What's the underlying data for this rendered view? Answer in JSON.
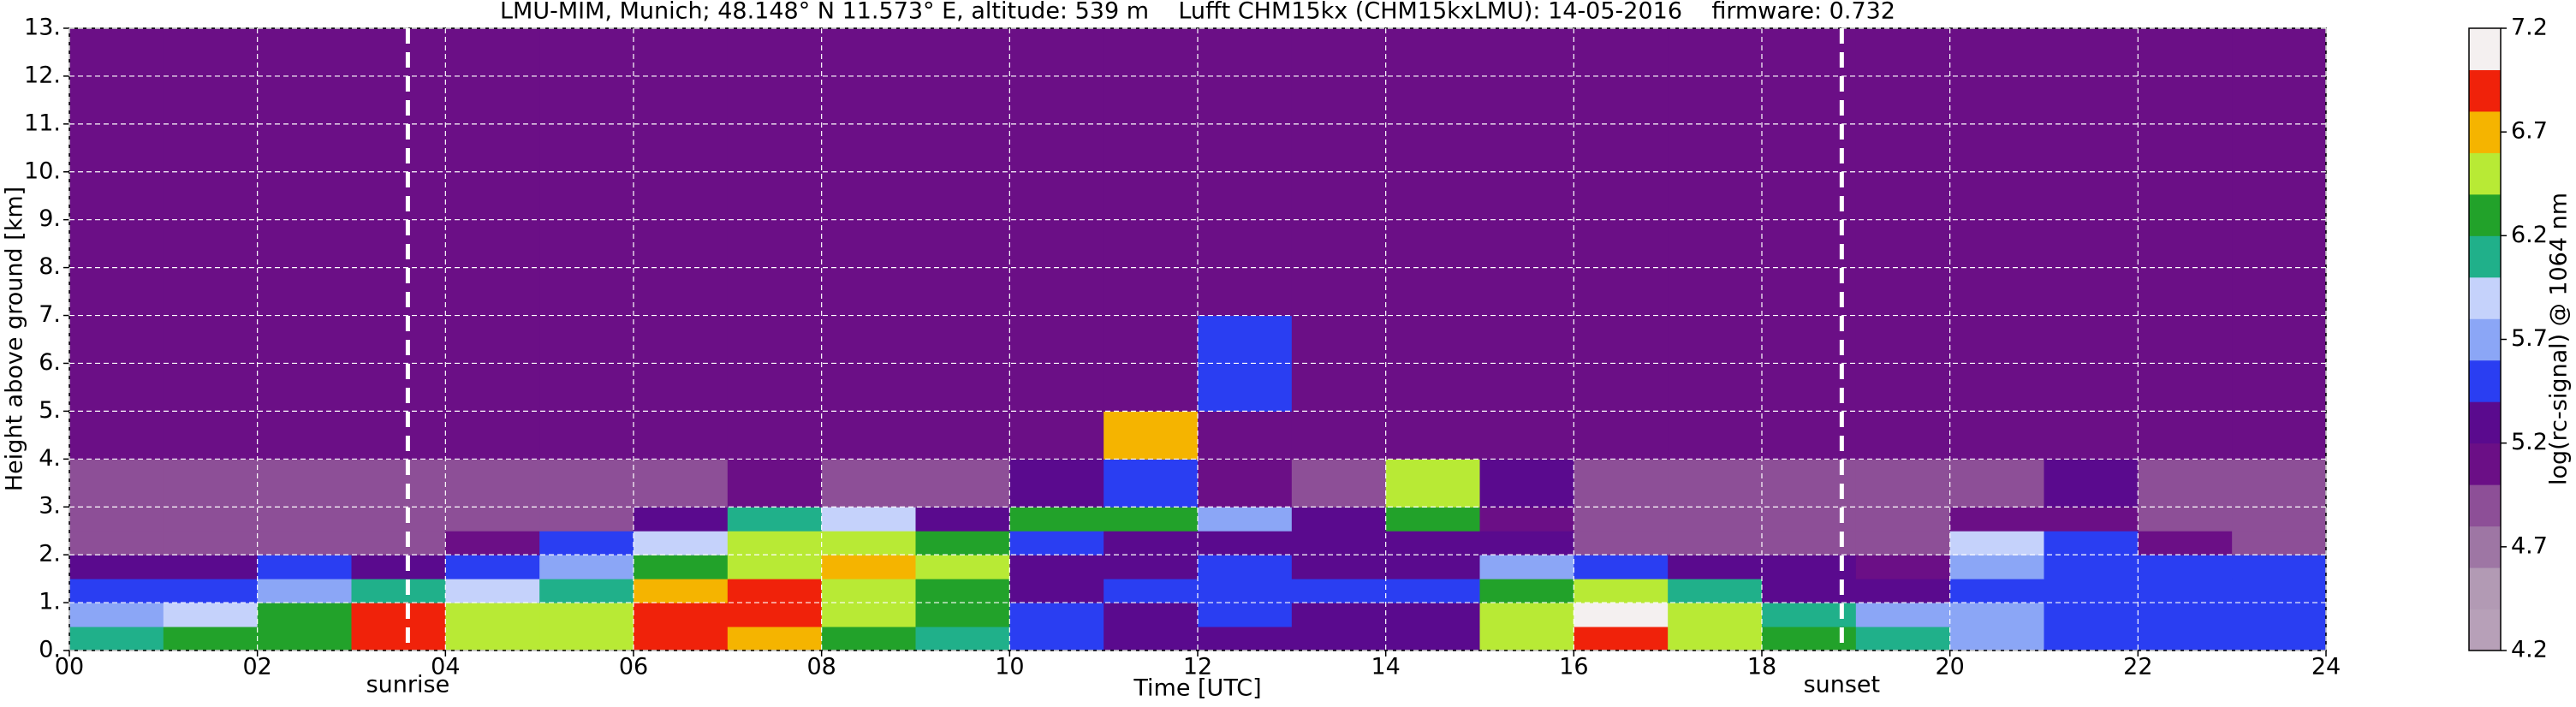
{
  "chart_data": {
    "type": "heatmap",
    "title": "LMU-MIM, Munich; 48.148° N 11.573° E, altitude: 539 m    Lufft CHM15kx (CHM15kxLMU): 14-05-2016    firmware: 0.732",
    "xlabel": "Time [UTC]",
    "ylabel": "Height above ground [km]",
    "colorbar_label": "log(rc-signal) @ 1064 nm",
    "xbins": [
      0,
      1,
      2,
      3,
      4,
      5,
      6,
      7,
      8,
      9,
      10,
      11,
      12,
      13,
      14,
      15,
      16,
      17,
      18,
      19,
      20,
      21,
      22,
      23,
      24
    ],
    "ybins": [
      0,
      0.5,
      1,
      1.5,
      2,
      2.5,
      3,
      4,
      5,
      7,
      13
    ],
    "z": [
      [
        6.0,
        6.2,
        6.3,
        6.9,
        6.6,
        6.5,
        7.0,
        6.8,
        6.3,
        6.0,
        5.6,
        5.3,
        5.3,
        5.3,
        5.2,
        6.5,
        7.0,
        6.6,
        6.3,
        6.1,
        5.7,
        5.6,
        5.5,
        5.5
      ],
      [
        5.7,
        5.9,
        6.2,
        6.9,
        6.5,
        6.4,
        7.0,
        6.9,
        6.4,
        6.2,
        5.4,
        5.3,
        5.4,
        5.3,
        5.3,
        6.6,
        7.1,
        6.5,
        6.0,
        5.8,
        5.7,
        5.6,
        5.5,
        5.5
      ],
      [
        5.5,
        5.6,
        5.8,
        6.0,
        5.9,
        6.1,
        6.7,
        6.9,
        6.6,
        6.3,
        5.3,
        5.4,
        5.5,
        5.5,
        5.4,
        6.2,
        6.6,
        6.0,
        5.3,
        5.2,
        5.6,
        5.5,
        5.5,
        5.5
      ],
      [
        5.2,
        5.3,
        5.4,
        5.3,
        5.4,
        5.8,
        6.2,
        6.6,
        6.7,
        6.5,
        5.3,
        5.3,
        5.4,
        5.3,
        5.3,
        5.8,
        5.6,
        5.3,
        5.2,
        5.1,
        5.7,
        5.6,
        5.6,
        5.6
      ],
      [
        5.0,
        5.0,
        5.0,
        5.0,
        5.1,
        5.4,
        5.9,
        6.6,
        6.4,
        6.3,
        5.4,
        5.2,
        5.2,
        5.2,
        5.3,
        5.2,
        5.0,
        5.0,
        5.0,
        5.0,
        5.9,
        5.6,
        5.1,
        5.0
      ],
      [
        5.0,
        5.0,
        5.0,
        5.0,
        5.0,
        5.0,
        5.2,
        6.0,
        5.9,
        5.2,
        6.2,
        6.3,
        5.8,
        5.3,
        6.3,
        5.1,
        5.0,
        5.0,
        5.0,
        5.0,
        5.1,
        5.1,
        5.0,
        5.0
      ],
      [
        5.0,
        5.0,
        5.0,
        5.0,
        5.0,
        5.0,
        5.0,
        5.1,
        5.0,
        5.0,
        5.2,
        5.4,
        5.1,
        5.0,
        6.5,
        5.2,
        5.0,
        5.0,
        5.0,
        5.0,
        5.0,
        5.2,
        5.0,
        5.0
      ],
      [
        5.1,
        5.1,
        5.1,
        5.1,
        5.1,
        5.1,
        5.1,
        5.1,
        5.1,
        5.1,
        5.1,
        6.8,
        5.1,
        5.1,
        5.1,
        5.1,
        5.1,
        5.1,
        5.1,
        5.1,
        5.1,
        5.1,
        5.1,
        5.1
      ],
      [
        5.1,
        5.1,
        5.1,
        5.1,
        5.1,
        5.1,
        5.1,
        5.1,
        5.1,
        5.1,
        5.1,
        5.1,
        5.6,
        5.1,
        5.1,
        5.1,
        5.1,
        5.1,
        5.1,
        5.1,
        5.1,
        5.1,
        5.1,
        5.1
      ],
      [
        5.1,
        5.1,
        5.1,
        5.1,
        5.1,
        5.1,
        5.1,
        5.1,
        5.1,
        5.1,
        5.1,
        5.1,
        5.1,
        5.1,
        5.1,
        5.1,
        5.1,
        5.1,
        5.1,
        5.1,
        5.1,
        5.1,
        5.1,
        5.1
      ]
    ],
    "xlim": [
      0,
      24
    ],
    "xticks": [
      {
        "value": 0,
        "label": "00"
      },
      {
        "value": 2,
        "label": "02"
      },
      {
        "value": 4,
        "label": "04"
      },
      {
        "value": 6,
        "label": "06"
      },
      {
        "value": 8,
        "label": "08"
      },
      10,
      12,
      14,
      16,
      18,
      20,
      22,
      24
    ],
    "ylim": [
      0,
      13
    ],
    "yticks": [
      {
        "value": 0,
        "label": "0."
      },
      {
        "value": 1,
        "label": "1."
      },
      {
        "value": 2,
        "label": "2."
      },
      {
        "value": 3,
        "label": "3."
      },
      {
        "value": 4,
        "label": "4."
      },
      {
        "value": 5,
        "label": "5."
      },
      {
        "value": 6,
        "label": "6."
      },
      {
        "value": 7,
        "label": "7."
      },
      {
        "value": 8,
        "label": "8."
      },
      {
        "value": 9,
        "label": "9."
      },
      {
        "value": 10,
        "label": "10."
      },
      {
        "value": 11,
        "label": "11."
      },
      {
        "value": 12,
        "label": "12."
      },
      {
        "value": 13,
        "label": "13."
      }
    ],
    "clim": [
      4.2,
      7.2
    ],
    "cticks": [
      4.2,
      4.7,
      5.2,
      5.7,
      6.2,
      6.7,
      7.2
    ],
    "colorscale": [
      "#b7a0b8",
      "#b29ab4",
      "#9e76a4",
      "#8d4f97",
      "#6b0f86",
      "#5a0a8e",
      "#2a3ef2",
      "#8ba6f6",
      "#c5d2fb",
      "#20b08a",
      "#22a22a",
      "#b8ea35",
      "#f5b400",
      "#f0220a",
      "#f4f0f0"
    ],
    "grid": true,
    "annotations": [
      {
        "x": 3.6,
        "label": "sunrise"
      },
      {
        "x": 18.85,
        "label": "sunset"
      }
    ]
  }
}
